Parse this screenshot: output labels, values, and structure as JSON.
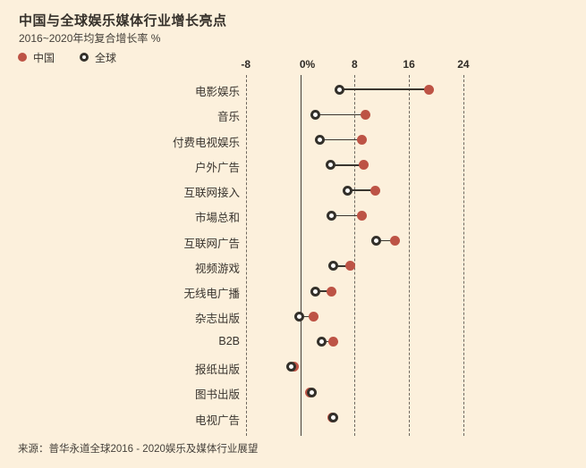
{
  "header": {
    "title": "中国与全球娱乐媒体行业增长亮点",
    "subtitle": "2016~2020年均复合增长率 %"
  },
  "legend": {
    "china_label": "中国",
    "global_label": "全球"
  },
  "source_note": "来源：普华永道全球2016 - 2020娱乐及媒体行业展望",
  "colors": {
    "background": "#fcf0dc",
    "china_dot": "#bd5345",
    "global_dot_ring": "#33302a",
    "global_dot_center": "#ffffff",
    "connector_line": "#3a362f",
    "gridline": "#6e675e",
    "text": "#39342e"
  },
  "chart_data": {
    "type": "scatter",
    "subtype": "dumbbell-dot-plot",
    "title": "中国与全球娱乐媒体行业增长亮点",
    "subtitle": "2016~2020年均复合增长率 %",
    "xlabel": "年均复合增长率 %",
    "axis_range": [
      -8,
      24
    ],
    "grid": "dashed-vertical",
    "legend_position": "top-left",
    "axis_ticks": [
      {
        "value": -8,
        "label": "-8"
      },
      {
        "value": 0,
        "label": "0%"
      },
      {
        "value": 8,
        "label": "8"
      },
      {
        "value": 16,
        "label": "16"
      },
      {
        "value": 24,
        "label": "24"
      }
    ],
    "categories": [
      "电影娱乐",
      "音乐",
      "付费电视娱乐",
      "户外广告",
      "互联网接入",
      "市場总和",
      "互联网广告",
      "视频游戏",
      "无线电广播",
      "杂志出版",
      "B2B",
      "报纸出版",
      "图书出版",
      "电视广告"
    ],
    "series": [
      {
        "name": "中国",
        "style": "filled-red-dot",
        "values": [
          19.0,
          9.6,
          9.1,
          9.4,
          11.1,
          9.1,
          13.9,
          7.4,
          4.6,
          2.0,
          4.9,
          -0.9,
          1.4,
          4.7
        ]
      },
      {
        "name": "全球",
        "style": "open-dark-dot",
        "values": [
          5.8,
          2.3,
          2.9,
          4.5,
          7.0,
          4.6,
          11.2,
          4.9,
          2.3,
          -0.1,
          3.2,
          -1.3,
          1.7,
          4.9
        ]
      }
    ]
  }
}
